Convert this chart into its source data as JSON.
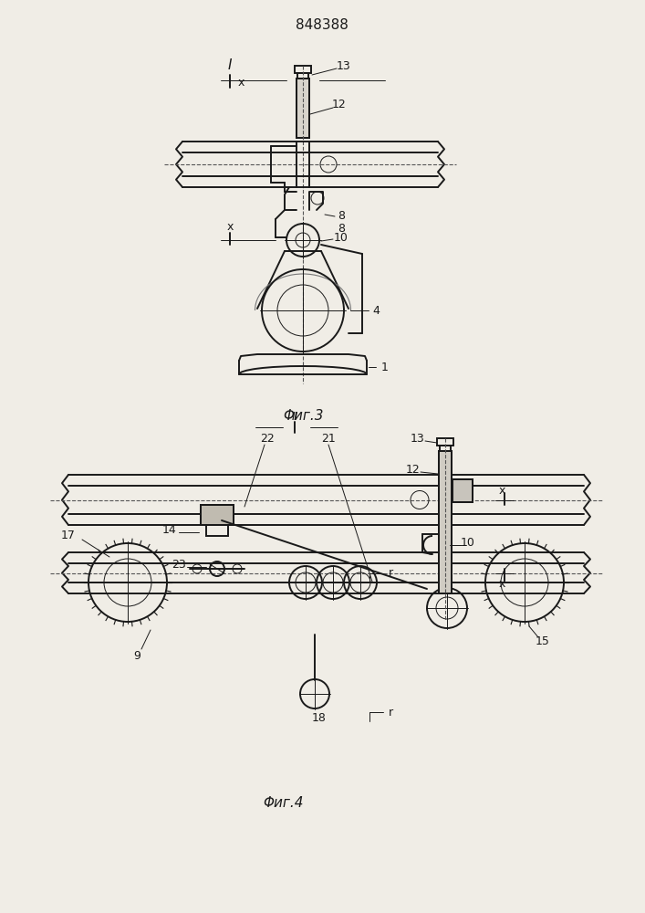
{
  "title": "848388",
  "fig3_label": "Φиг.3",
  "fig4_label": "Φиг.4",
  "bg_color": "#f0ede6",
  "line_color": "#1a1a1a",
  "lw_main": 1.4,
  "lw_thin": 0.7,
  "lw_dash": 0.8,
  "fs_title": 11,
  "fs_label": 11,
  "fs_annot": 9
}
